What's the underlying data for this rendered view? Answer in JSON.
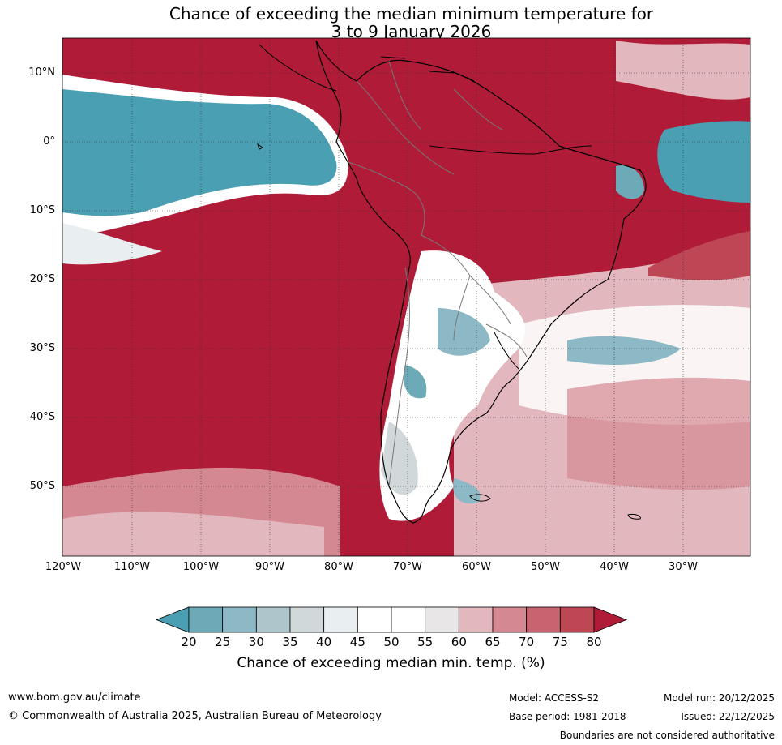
{
  "title_line1": "Chance of exceeding the median minimum temperature for",
  "title_line2": "3 to 9 January 2026",
  "lat_labels": [
    "10°N",
    "0°",
    "10°S",
    "20°S",
    "30°S",
    "40°S",
    "50°S"
  ],
  "lon_labels": [
    "120°W",
    "110°W",
    "100°W",
    "90°W",
    "80°W",
    "70°W",
    "60°W",
    "50°W",
    "40°W",
    "30°W"
  ],
  "colorbar": {
    "ticks": [
      "20",
      "25",
      "30",
      "35",
      "40",
      "45",
      "50",
      "55",
      "60",
      "65",
      "70",
      "75",
      "80"
    ],
    "colors": [
      "#4a9fb2",
      "#6baab6",
      "#8cb9c5",
      "#aec6cb",
      "#d0d8da",
      "#e9eef0",
      "#ffffff",
      "#ffffff",
      "#e8e6e7",
      "#e2b7bd",
      "#d48891",
      "#c76470",
      "#be4756",
      "#b01c38"
    ],
    "label": "Chance of exceeding median min. temp. (%)"
  },
  "footer": {
    "website": "www.bom.gov.au/climate",
    "copyright": "© Commonwealth of Australia 2025, Australian Bureau of Meteorology",
    "model": "Model: ACCESS-S2",
    "base_period": "Base period: 1981-2018",
    "model_run": "Model run: 20/12/2025",
    "issued": "Issued: 22/12/2025",
    "disclaimer": "Boundaries are not considered authoritative"
  },
  "colors": {
    "high": "#b01c38",
    "low": "#4a9fb2",
    "neutral": "#ffffff"
  }
}
